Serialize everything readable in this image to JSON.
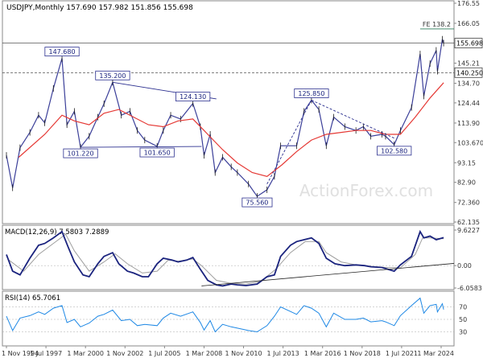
{
  "chart_data": [
    {
      "type": "candlestick",
      "panel": "price",
      "title": "USDJPY,Monthly  157.690 157.982 151.856 155.698",
      "x_ticks": [
        "1 Nov 1994",
        "1 Jul 1997",
        "1 Mar 2000",
        "1 Nov 2002",
        "1 Jul 2005",
        "1 Mar 2008",
        "1 Nov 2010",
        "1 Jul 2013",
        "1 Mar 2016",
        "1 Nov 2018",
        "1 Jul 2021",
        "1 Mar 2024"
      ],
      "y_ticks": [
        "176.55",
        "166.05",
        "155.698",
        "145.21",
        "140.250",
        "134.70",
        "124.44",
        "113.90",
        "103.670",
        "93.15",
        "82.90",
        "72.360",
        "62.135"
      ],
      "ylim": [
        62.135,
        176.55
      ],
      "current_price": "155.698",
      "support_level": "140.250",
      "fe_label": "FE 138.2",
      "watermark": "ActionForex.com",
      "close_line_color": "#3b3f99",
      "ma_color": "#e53935",
      "annotations": [
        {
          "label": "147.680",
          "date": "1998-08",
          "value": 147.68
        },
        {
          "label": "135.200",
          "date": "2002-01",
          "value": 135.2
        },
        {
          "label": "124.130",
          "date": "2007-06",
          "value": 124.13
        },
        {
          "label": "101.220",
          "date": "1999-11",
          "value": 101.22
        },
        {
          "label": "101.650",
          "date": "2005-01",
          "value": 101.65
        },
        {
          "label": "75.560",
          "date": "2011-10",
          "value": 75.56
        },
        {
          "label": "125.850",
          "date": "2015-06",
          "value": 125.85
        },
        {
          "label": "102.580",
          "date": "2021-01",
          "value": 102.58
        }
      ],
      "price_path": [
        [
          "1994-11",
          97
        ],
        [
          "1995-04",
          80
        ],
        [
          "1995-10",
          101
        ],
        [
          "1996-06",
          109
        ],
        [
          "1997-01",
          118
        ],
        [
          "1997-06",
          114
        ],
        [
          "1998-01",
          132
        ],
        [
          "1998-08",
          147.68
        ],
        [
          "1998-12",
          113
        ],
        [
          "1999-06",
          120
        ],
        [
          "1999-11",
          101.2
        ],
        [
          "2000-06",
          107
        ],
        [
          "2001-01",
          117
        ],
        [
          "2001-06",
          124
        ],
        [
          "2002-01",
          135.2
        ],
        [
          "2002-08",
          118
        ],
        [
          "2003-03",
          120
        ],
        [
          "2003-09",
          110
        ],
        [
          "2004-03",
          105
        ],
        [
          "2005-01",
          101.7
        ],
        [
          "2005-06",
          110
        ],
        [
          "2005-12",
          118
        ],
        [
          "2006-08",
          116
        ],
        [
          "2007-06",
          124.13
        ],
        [
          "2007-12",
          112
        ],
        [
          "2008-03",
          97
        ],
        [
          "2008-08",
          108
        ],
        [
          "2008-12",
          88
        ],
        [
          "2009-06",
          96
        ],
        [
          "2010-01",
          91
        ],
        [
          "2010-06",
          88
        ],
        [
          "2011-03",
          82
        ],
        [
          "2011-10",
          75.56
        ],
        [
          "2012-06",
          79
        ],
        [
          "2012-12",
          86
        ],
        [
          "2013-05",
          102
        ],
        [
          "2014-06",
          102
        ],
        [
          "2014-12",
          120
        ],
        [
          "2015-06",
          125.85
        ],
        [
          "2015-12",
          121
        ],
        [
          "2016-06",
          102
        ],
        [
          "2016-12",
          117
        ],
        [
          "2017-09",
          112
        ],
        [
          "2018-06",
          110
        ],
        [
          "2018-12",
          112
        ],
        [
          "2019-06",
          107
        ],
        [
          "2020-03",
          108
        ],
        [
          "2020-06",
          107
        ],
        [
          "2021-01",
          102.58
        ],
        [
          "2021-06",
          110
        ],
        [
          "2022-03",
          122
        ],
        [
          "2022-10",
          150
        ],
        [
          "2023-01",
          128
        ],
        [
          "2023-06",
          145
        ],
        [
          "2023-11",
          151.9
        ],
        [
          "2023-12",
          141
        ],
        [
          "2024-04",
          157.7
        ],
        [
          "2024-05",
          155.7
        ]
      ],
      "ma_path": [
        [
          "1995-09",
          96
        ],
        [
          "1997-06",
          108
        ],
        [
          "1998-08",
          118
        ],
        [
          "1999-06",
          115
        ],
        [
          "2000-06",
          113
        ],
        [
          "2001-06",
          119
        ],
        [
          "2002-06",
          121
        ],
        [
          "2003-06",
          117
        ],
        [
          "2004-06",
          113
        ],
        [
          "2005-06",
          112
        ],
        [
          "2006-06",
          115
        ],
        [
          "2007-06",
          116
        ],
        [
          "2008-06",
          108
        ],
        [
          "2009-06",
          100
        ],
        [
          "2010-06",
          93
        ],
        [
          "2011-06",
          88
        ],
        [
          "2012-06",
          86
        ],
        [
          "2013-06",
          92
        ],
        [
          "2014-06",
          99
        ],
        [
          "2015-06",
          105
        ],
        [
          "2016-06",
          108
        ],
        [
          "2017-06",
          109
        ],
        [
          "2018-06",
          110
        ],
        [
          "2019-06",
          110
        ],
        [
          "2020-06",
          108
        ],
        [
          "2021-06",
          108
        ],
        [
          "2022-06",
          117
        ],
        [
          "2023-06",
          127
        ],
        [
          "2024-05",
          135
        ]
      ],
      "trendlines": [
        {
          "from": [
            "2002-01",
            135.2
          ],
          "to": [
            "2009-01",
            126.5
          ],
          "style": "solid"
        },
        {
          "from": [
            "1999-11",
            101.22
          ],
          "to": [
            "2008-01",
            101.65
          ],
          "style": "solid"
        },
        {
          "from": [
            "2012-06",
            82
          ],
          "to": [
            "2015-06",
            125.85
          ],
          "style": "dashed"
        },
        {
          "from": [
            "2015-06",
            125.85
          ],
          "to": [
            "2021-01",
            106
          ],
          "style": "dashed"
        }
      ]
    },
    {
      "type": "line",
      "panel": "macd",
      "title": "MACD(12,26,9) 7.5803 7.2889",
      "y_ticks": [
        "9.6227",
        "0.00",
        "-6.0583"
      ],
      "ylim": [
        -6.0583,
        9.6227
      ],
      "series": [
        {
          "name": "MACD",
          "color": "#1a237e",
          "values": [
            [
              "1994-11",
              3.0
            ],
            [
              "1995-04",
              -1.5
            ],
            [
              "1995-10",
              -2.5
            ],
            [
              "1996-06",
              2.0
            ],
            [
              "1997-01",
              5.5
            ],
            [
              "1997-06",
              6.0
            ],
            [
              "1998-01",
              7.5
            ],
            [
              "1998-08",
              9.2
            ],
            [
              "1999-01",
              5.0
            ],
            [
              "1999-06",
              1.0
            ],
            [
              "2000-01",
              -2.5
            ],
            [
              "2000-06",
              -3.0
            ],
            [
              "2001-01",
              0.5
            ],
            [
              "2001-06",
              2.5
            ],
            [
              "2002-01",
              3.5
            ],
            [
              "2002-06",
              0.5
            ],
            [
              "2003-01",
              -1.5
            ],
            [
              "2003-06",
              -2.0
            ],
            [
              "2004-01",
              -3.0
            ],
            [
              "2004-06",
              -3.0
            ],
            [
              "2005-01",
              0.5
            ],
            [
              "2005-06",
              2.0
            ],
            [
              "2006-01",
              1.5
            ],
            [
              "2006-06",
              1.0
            ],
            [
              "2007-01",
              1.5
            ],
            [
              "2007-06",
              2.2
            ],
            [
              "2007-12",
              -1.0
            ],
            [
              "2008-06",
              -4.0
            ],
            [
              "2009-01",
              -5.2
            ],
            [
              "2009-06",
              -5.5
            ],
            [
              "2010-01",
              -5.0
            ],
            [
              "2010-06",
              -5.2
            ],
            [
              "2011-01",
              -5.4
            ],
            [
              "2011-10",
              -5.0
            ],
            [
              "2012-06",
              -3.0
            ],
            [
              "2012-12",
              -2.5
            ],
            [
              "2013-05",
              2.5
            ],
            [
              "2014-01",
              5.5
            ],
            [
              "2014-06",
              6.5
            ],
            [
              "2014-12",
              7.0
            ],
            [
              "2015-06",
              7.5
            ],
            [
              "2015-12",
              6.0
            ],
            [
              "2016-06",
              2.0
            ],
            [
              "2017-01",
              0.5
            ],
            [
              "2017-09",
              0.0
            ],
            [
              "2018-06",
              0.2
            ],
            [
              "2019-01",
              0.0
            ],
            [
              "2019-06",
              -0.3
            ],
            [
              "2020-03",
              -0.5
            ],
            [
              "2020-06",
              -0.8
            ],
            [
              "2021-01",
              -1.5
            ],
            [
              "2021-06",
              0.2
            ],
            [
              "2022-03",
              2.5
            ],
            [
              "2022-10",
              9.2
            ],
            [
              "2023-01",
              7.5
            ],
            [
              "2023-06",
              8.0
            ],
            [
              "2023-11",
              7.0
            ],
            [
              "2024-05",
              7.58
            ]
          ]
        },
        {
          "name": "Signal",
          "color": "#9e9e9e",
          "values": [
            [
              "1995-01",
              1.5
            ],
            [
              "1996-01",
              -1.5
            ],
            [
              "1997-01",
              3.0
            ],
            [
              "1998-01",
              6.0
            ],
            [
              "1998-11",
              8.5
            ],
            [
              "1999-06",
              4.0
            ],
            [
              "2000-06",
              -1.5
            ],
            [
              "2001-06",
              1.0
            ],
            [
              "2002-03",
              3.2
            ],
            [
              "2003-01",
              0.5
            ],
            [
              "2004-01",
              -2.0
            ],
            [
              "2005-01",
              -1.5
            ],
            [
              "2005-10",
              1.5
            ],
            [
              "2006-06",
              1.2
            ],
            [
              "2007-06",
              1.8
            ],
            [
              "2008-01",
              0.0
            ],
            [
              "2009-01",
              -4.0
            ],
            [
              "2010-01",
              -4.8
            ],
            [
              "2011-01",
              -5.0
            ],
            [
              "2012-01",
              -4.3
            ],
            [
              "2013-01",
              -1.0
            ],
            [
              "2014-01",
              3.5
            ],
            [
              "2015-01",
              6.5
            ],
            [
              "2015-12",
              6.5
            ],
            [
              "2016-06",
              3.5
            ],
            [
              "2017-06",
              1.0
            ],
            [
              "2018-06",
              0.2
            ],
            [
              "2019-06",
              -0.2
            ],
            [
              "2020-06",
              -0.5
            ],
            [
              "2021-06",
              -0.6
            ],
            [
              "2022-06",
              3.0
            ],
            [
              "2022-12",
              7.5
            ],
            [
              "2023-06",
              7.5
            ],
            [
              "2024-05",
              7.29
            ]
          ]
        }
      ],
      "trendline": {
        "from": [
          "2008-01",
          -5.5
        ],
        "to": [
          "2024-05",
          0.3
        ]
      }
    },
    {
      "type": "line",
      "panel": "rsi",
      "title": "RSI(14) 65.7061",
      "y_ticks": [
        "70",
        "50",
        "30"
      ],
      "ylim": [
        10,
        90
      ],
      "series": [
        {
          "name": "RSI",
          "color": "#1e88e5",
          "values": [
            [
              "1994-11",
              55
            ],
            [
              "1995-04",
              32
            ],
            [
              "1995-10",
              52
            ],
            [
              "1996-06",
              56
            ],
            [
              "1997-01",
              62
            ],
            [
              "1997-06",
              58
            ],
            [
              "1998-01",
              68
            ],
            [
              "1998-08",
              72
            ],
            [
              "1998-12",
              45
            ],
            [
              "1999-06",
              50
            ],
            [
              "1999-11",
              38
            ],
            [
              "2000-06",
              44
            ],
            [
              "2001-01",
              55
            ],
            [
              "2001-06",
              58
            ],
            [
              "2002-01",
              65
            ],
            [
              "2002-08",
              48
            ],
            [
              "2003-03",
              50
            ],
            [
              "2003-09",
              40
            ],
            [
              "2004-03",
              42
            ],
            [
              "2005-01",
              40
            ],
            [
              "2005-06",
              52
            ],
            [
              "2005-12",
              60
            ],
            [
              "2006-08",
              55
            ],
            [
              "2007-06",
              62
            ],
            [
              "2007-12",
              45
            ],
            [
              "2008-03",
              33
            ],
            [
              "2008-08",
              48
            ],
            [
              "2008-12",
              30
            ],
            [
              "2009-06",
              42
            ],
            [
              "2010-01",
              38
            ],
            [
              "2010-06",
              36
            ],
            [
              "2011-03",
              32
            ],
            [
              "2011-10",
              30
            ],
            [
              "2012-06",
              40
            ],
            [
              "2012-12",
              55
            ],
            [
              "2013-05",
              70
            ],
            [
              "2014-06",
              58
            ],
            [
              "2014-12",
              72
            ],
            [
              "2015-06",
              68
            ],
            [
              "2015-12",
              60
            ],
            [
              "2016-06",
              38
            ],
            [
              "2016-12",
              60
            ],
            [
              "2017-09",
              50
            ],
            [
              "2018-06",
              50
            ],
            [
              "2018-12",
              52
            ],
            [
              "2019-06",
              46
            ],
            [
              "2020-03",
              48
            ],
            [
              "2020-06",
              46
            ],
            [
              "2021-01",
              40
            ],
            [
              "2021-06",
              56
            ],
            [
              "2022-03",
              72
            ],
            [
              "2022-10",
              84
            ],
            [
              "2023-01",
              60
            ],
            [
              "2023-06",
              72
            ],
            [
              "2023-11",
              74
            ],
            [
              "2023-12",
              62
            ],
            [
              "2024-04",
              75
            ],
            [
              "2024-05",
              65.7
            ]
          ]
        }
      ]
    }
  ]
}
